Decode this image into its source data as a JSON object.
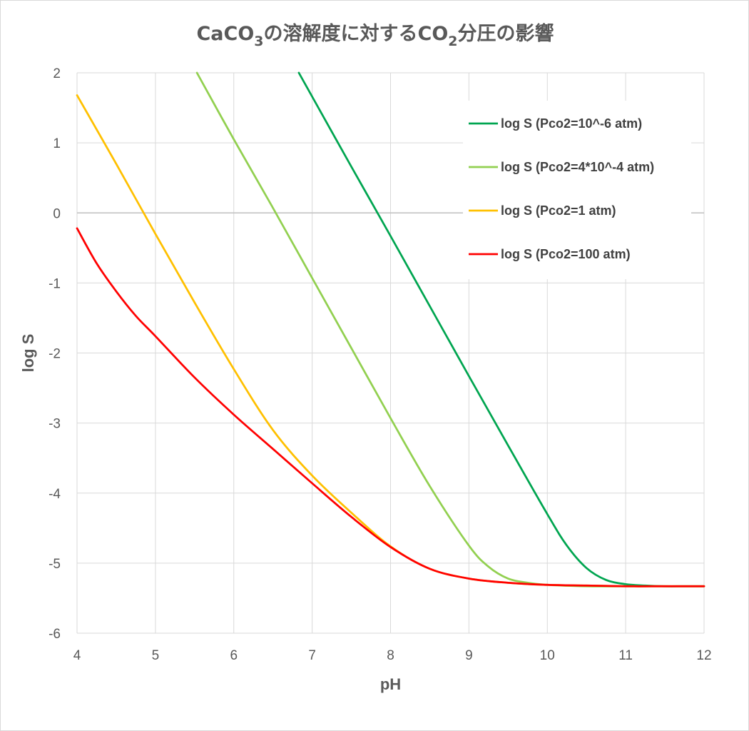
{
  "title": {
    "part1": "CaCO",
    "sub1": "3",
    "part2": "の溶解度に対するCO",
    "sub2": "2",
    "part3": "分圧の影響"
  },
  "chart_data": {
    "type": "line",
    "title": "CaCO3の溶解度に対するCO2分圧の影響",
    "xlabel": "pH",
    "ylabel": "log S",
    "xlim": [
      4,
      12
    ],
    "ylim": [
      -6,
      2
    ],
    "xticks": [
      4,
      5,
      6,
      7,
      8,
      9,
      10,
      11,
      12
    ],
    "yticks": [
      2,
      1,
      0,
      -1,
      -2,
      -3,
      -4,
      -5,
      -6
    ],
    "grid": true,
    "legend_position": "top-right",
    "series": [
      {
        "name": "log S (Pco2=10^-6 atm)",
        "color": "#00a550",
        "x": [
          6.83,
          7.0,
          7.5,
          8.0,
          8.5,
          9.0,
          9.5,
          10.0,
          10.25,
          10.5,
          10.75,
          11.0,
          11.25,
          11.5,
          11.75,
          12.0
        ],
        "y": [
          2.0,
          1.66,
          0.66,
          -0.33,
          -1.33,
          -2.33,
          -3.32,
          -4.3,
          -4.75,
          -5.07,
          -5.24,
          -5.3,
          -5.32,
          -5.33,
          -5.33,
          -5.33
        ]
      },
      {
        "name": "log S (Pco2=4*10^-4 atm)",
        "color": "#92d050",
        "x": [
          5.53,
          6.0,
          6.5,
          7.0,
          7.5,
          8.0,
          8.5,
          9.0,
          9.25,
          9.5,
          9.75,
          10.0,
          10.5,
          11.0,
          11.5,
          12.0
        ],
        "y": [
          2.0,
          1.05,
          0.07,
          -0.93,
          -1.93,
          -2.93,
          -3.9,
          -4.75,
          -5.05,
          -5.22,
          -5.28,
          -5.31,
          -5.33,
          -5.33,
          -5.33,
          -5.33
        ]
      },
      {
        "name": "log S (Pco2=1 atm)",
        "color": "#ffc000",
        "x": [
          4.0,
          4.5,
          5.0,
          5.5,
          6.0,
          6.5,
          7.0,
          7.5,
          8.0,
          8.5,
          9.0,
          9.5,
          10.0,
          10.5,
          11.0,
          11.5,
          12.0
        ],
        "y": [
          1.68,
          0.7,
          -0.3,
          -1.28,
          -2.23,
          -3.1,
          -3.75,
          -4.28,
          -4.76,
          -5.08,
          -5.22,
          -5.28,
          -5.31,
          -5.32,
          -5.33,
          -5.33,
          -5.33
        ]
      },
      {
        "name": "log S (Pco2=100 atm)",
        "color": "#ff0000",
        "x": [
          4.0,
          4.25,
          4.5,
          4.75,
          5.0,
          5.5,
          6.0,
          6.5,
          7.0,
          7.5,
          8.0,
          8.5,
          9.0,
          9.5,
          10.0,
          10.5,
          11.0,
          11.5,
          12.0
        ],
        "y": [
          -0.22,
          -0.72,
          -1.12,
          -1.47,
          -1.76,
          -2.35,
          -2.88,
          -3.37,
          -3.86,
          -4.34,
          -4.77,
          -5.08,
          -5.22,
          -5.28,
          -5.31,
          -5.32,
          -5.33,
          -5.33,
          -5.33
        ]
      }
    ]
  }
}
